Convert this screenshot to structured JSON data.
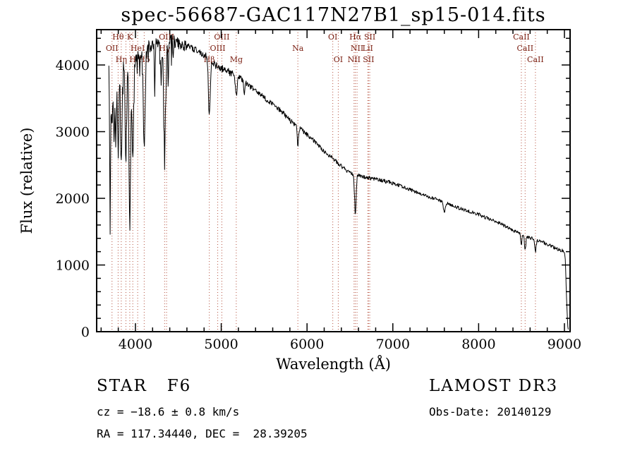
{
  "chart_data": {
    "type": "line",
    "title": "spec-56687-GAC117N27B1_sp15-014.fits",
    "xlabel": "Wavelength (Å)",
    "ylabel": "Flux (relative)",
    "xlim": [
      3548,
      9066
    ],
    "ylim": [
      0,
      4530
    ],
    "xticks": [
      4000,
      5000,
      6000,
      7000,
      8000,
      9000
    ],
    "yticks": [
      0,
      1000,
      2000,
      3000,
      4000
    ],
    "x_minor_step": 200,
    "y_minor_step": 200,
    "series_color": "#000000",
    "marker_color": "#b5523f",
    "label_color": "#7b2013",
    "noise_seed": 12345,
    "sample_step": 5,
    "spectrum_range": [
      3690,
      9045
    ],
    "continuum": [
      [
        3690,
        3900
      ],
      [
        3720,
        3950
      ],
      [
        3760,
        3980
      ],
      [
        3800,
        4000
      ],
      [
        3850,
        4020
      ],
      [
        3900,
        4060
      ],
      [
        3950,
        4080
      ],
      [
        4000,
        4120
      ],
      [
        4050,
        4180
      ],
      [
        4100,
        4230
      ],
      [
        4150,
        4280
      ],
      [
        4200,
        4320
      ],
      [
        4250,
        4340
      ],
      [
        4300,
        4350
      ],
      [
        4350,
        4360
      ],
      [
        4400,
        4370
      ],
      [
        4450,
        4350
      ],
      [
        4500,
        4330
      ],
      [
        4550,
        4310
      ],
      [
        4600,
        4280
      ],
      [
        4650,
        4250
      ],
      [
        4700,
        4230
      ],
      [
        4750,
        4200
      ],
      [
        4800,
        4150
      ],
      [
        4861,
        4080
      ],
      [
        4900,
        4020
      ],
      [
        4950,
        3980
      ],
      [
        5000,
        3950
      ],
      [
        5050,
        3920
      ],
      [
        5100,
        3890
      ],
      [
        5150,
        3860
      ],
      [
        5200,
        3820
      ],
      [
        5250,
        3780
      ],
      [
        5300,
        3720
      ],
      [
        5350,
        3660
      ],
      [
        5400,
        3610
      ],
      [
        5450,
        3560
      ],
      [
        5500,
        3510
      ],
      [
        5550,
        3460
      ],
      [
        5600,
        3410
      ],
      [
        5650,
        3360
      ],
      [
        5700,
        3310
      ],
      [
        5750,
        3240
      ],
      [
        5800,
        3170
      ],
      [
        5850,
        3110
      ],
      [
        5900,
        3060
      ],
      [
        5950,
        3010
      ],
      [
        6000,
        2960
      ],
      [
        6050,
        2900
      ],
      [
        6100,
        2840
      ],
      [
        6150,
        2770
      ],
      [
        6200,
        2700
      ],
      [
        6250,
        2650
      ],
      [
        6300,
        2600
      ],
      [
        6350,
        2540
      ],
      [
        6400,
        2480
      ],
      [
        6450,
        2430
      ],
      [
        6500,
        2390
      ],
      [
        6550,
        2360
      ],
      [
        6600,
        2340
      ],
      [
        6650,
        2320
      ],
      [
        6700,
        2310
      ],
      [
        6800,
        2290
      ],
      [
        6900,
        2260
      ],
      [
        7000,
        2230
      ],
      [
        7100,
        2180
      ],
      [
        7200,
        2130
      ],
      [
        7300,
        2080
      ],
      [
        7400,
        2030
      ],
      [
        7500,
        1990
      ],
      [
        7600,
        1940
      ],
      [
        7700,
        1890
      ],
      [
        7800,
        1840
      ],
      [
        7900,
        1800
      ],
      [
        8000,
        1760
      ],
      [
        8100,
        1700
      ],
      [
        8200,
        1650
      ],
      [
        8300,
        1590
      ],
      [
        8400,
        1520
      ],
      [
        8500,
        1460
      ],
      [
        8600,
        1410
      ],
      [
        8700,
        1370
      ],
      [
        8800,
        1310
      ],
      [
        8900,
        1250
      ],
      [
        8980,
        1215
      ],
      [
        9000,
        1200
      ],
      [
        9012,
        1050
      ],
      [
        9025,
        500
      ],
      [
        9038,
        120
      ],
      [
        9045,
        40
      ]
    ],
    "absorption_lines": [
      {
        "wl": 3705,
        "depth": 2300,
        "width": 5
      },
      {
        "wl": 3727,
        "depth": 900,
        "width": 6
      },
      {
        "wl": 3750,
        "depth": 1100,
        "width": 7
      },
      {
        "wl": 3771,
        "depth": 1000,
        "width": 7
      },
      {
        "wl": 3798,
        "depth": 1250,
        "width": 8
      },
      {
        "wl": 3835,
        "depth": 1350,
        "width": 9
      },
      {
        "wl": 3889,
        "depth": 1400,
        "width": 9
      },
      {
        "wl": 3934,
        "depth": 2500,
        "width": 9
      },
      {
        "wl": 3969,
        "depth": 1500,
        "width": 10
      },
      {
        "wl": 4102,
        "depth": 1500,
        "width": 10
      },
      {
        "wl": 4227,
        "depth": 600,
        "width": 5
      },
      {
        "wl": 4300,
        "depth": 500,
        "width": 9
      },
      {
        "wl": 4340,
        "depth": 1600,
        "width": 10
      },
      {
        "wl": 4383,
        "depth": 500,
        "width": 5
      },
      {
        "wl": 4861,
        "depth": 850,
        "width": 10
      },
      {
        "wl": 5175,
        "depth": 300,
        "width": 11
      },
      {
        "wl": 5269,
        "depth": 200,
        "width": 6
      },
      {
        "wl": 5893,
        "depth": 260,
        "width": 7
      },
      {
        "wl": 6563,
        "depth": 600,
        "width": 9
      },
      {
        "wl": 7600,
        "depth": 140,
        "width": 12
      },
      {
        "wl": 8498,
        "depth": 150,
        "width": 7
      },
      {
        "wl": 8542,
        "depth": 200,
        "width": 8
      },
      {
        "wl": 8662,
        "depth": 180,
        "width": 8
      }
    ],
    "noise_segments": [
      {
        "upto": 4000,
        "amp": 120
      },
      {
        "upto": 4600,
        "amp": 90
      },
      {
        "upto": 5200,
        "amp": 55
      },
      {
        "upto": 6000,
        "amp": 40
      },
      {
        "upto": 7000,
        "amp": 30
      },
      {
        "upto": 8000,
        "amp": 25
      },
      {
        "upto": 9100,
        "amp": 26
      }
    ],
    "extra_dips": {
      "below_wl": 4450,
      "threshold": 0.6,
      "scale": 2200
    },
    "spectral_lines": [
      {
        "label": "Hθ",
        "wl": 3798,
        "row": 0
      },
      {
        "label": "K",
        "wl": 3934,
        "row": 0
      },
      {
        "label": "",
        "wl": 3889,
        "row": 0
      },
      {
        "label": "OIII",
        "wl": 4363,
        "row": 0
      },
      {
        "label": "OIII",
        "wl": 5007,
        "row": 0
      },
      {
        "label": "OI",
        "wl": 6300,
        "row": 0
      },
      {
        "label": "Hα",
        "wl": 6563,
        "row": 0
      },
      {
        "label": "SII",
        "wl": 6731,
        "row": 0
      },
      {
        "label": "CaII",
        "wl": 8498,
        "row": 0
      },
      {
        "label": "OII",
        "wl": 3727,
        "row": 1
      },
      {
        "label": "HeI",
        "wl": 4026,
        "row": 1
      },
      {
        "label": "Hγ",
        "wl": 4340,
        "row": 1
      },
      {
        "label": "OIII",
        "wl": 4959,
        "row": 1
      },
      {
        "label": "Na",
        "wl": 5893,
        "row": 1
      },
      {
        "label": "NII",
        "wl": 6583,
        "row": 1
      },
      {
        "label": "LiI",
        "wl": 6708,
        "row": 1
      },
      {
        "label": "CaII",
        "wl": 8542,
        "row": 1
      },
      {
        "label": "Hη",
        "wl": 3835,
        "row": 2
      },
      {
        "label": "H",
        "wl": 3969,
        "row": 2
      },
      {
        "label": "Hδ",
        "wl": 4102,
        "row": 2
      },
      {
        "label": "Hβ",
        "wl": 4861,
        "row": 2
      },
      {
        "label": "Mg",
        "wl": 5175,
        "row": 2
      },
      {
        "label": "OI",
        "wl": 6364,
        "row": 2
      },
      {
        "label": "NII",
        "wl": 6548,
        "row": 2
      },
      {
        "label": "SII",
        "wl": 6717,
        "row": 2
      },
      {
        "label": "CaII",
        "wl": 8662,
        "row": 2
      }
    ]
  },
  "annotations": {
    "class_line": "STAR   F6",
    "survey": "LAMOST DR3",
    "cz": "cz = −18.6 ± 0.8 km/s",
    "obs_date": "Obs-Date: 20140129",
    "ra_dec": "RA = 117.34440, DEC =  28.39205"
  }
}
